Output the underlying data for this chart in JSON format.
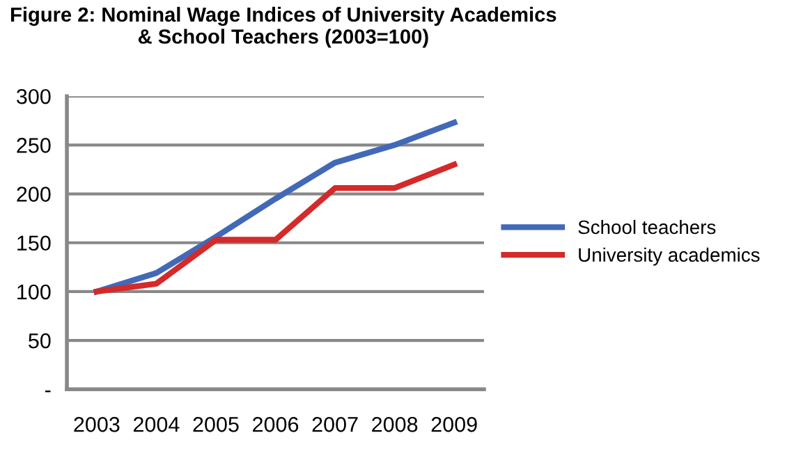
{
  "chart_data": {
    "type": "line",
    "title": "Figure 2: Nominal Wage Indices of University Academics\n& School Teachers (2003=100)",
    "categories": [
      "2003",
      "2004",
      "2005",
      "2006",
      "2007",
      "2008",
      "2009"
    ],
    "series": [
      {
        "name": "School teachers",
        "color": "#4169b8",
        "values": [
          100,
          119,
          156,
          195,
          232,
          250,
          273
        ]
      },
      {
        "name": "University academics",
        "color": "#d42a2a",
        "values": [
          100,
          108,
          153,
          153,
          206,
          206,
          230
        ]
      }
    ],
    "ylim": [
      0,
      300
    ],
    "yticks": [
      {
        "value": 0,
        "label": "-"
      },
      50,
      100,
      150,
      200,
      250,
      300
    ],
    "grid": "y",
    "legend": "right",
    "marker": "none",
    "line_style": "solid"
  }
}
